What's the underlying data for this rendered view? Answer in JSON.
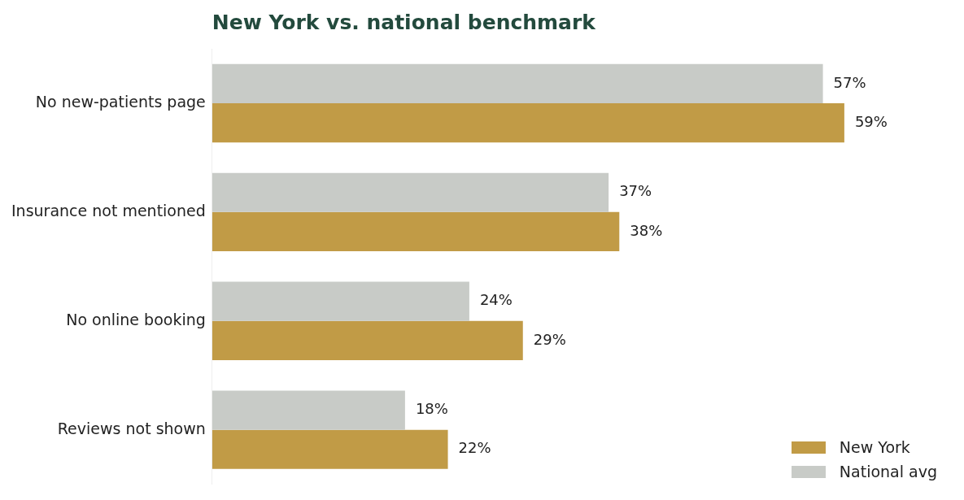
{
  "chart_data": {
    "type": "bar",
    "orientation": "horizontal",
    "title": "New York vs. national benchmark",
    "categories": [
      "No new-patients page",
      "Insurance not mentioned",
      "No online booking",
      "Reviews not shown"
    ],
    "series": [
      {
        "name": "National avg",
        "color": "#c8cbc7",
        "values": [
          57,
          37,
          24,
          18
        ],
        "value_labels": [
          "57%",
          "37%",
          "24%",
          "18%"
        ]
      },
      {
        "name": "New York",
        "color": "#c19b46",
        "values": [
          59,
          38,
          29,
          22
        ],
        "value_labels": [
          "59%",
          "38%",
          "29%",
          "22%"
        ]
      }
    ],
    "legend": "bottom right",
    "grid": false
  }
}
